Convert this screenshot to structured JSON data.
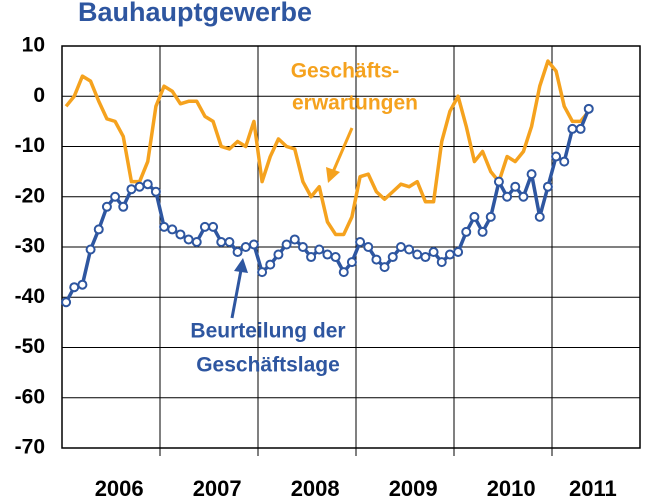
{
  "chart_data": {
    "type": "line",
    "title": "Bauhauptgewerbe",
    "categories": [
      null,
      null,
      null,
      null,
      null,
      null,
      "2006",
      null,
      null,
      null,
      null,
      null,
      null,
      null,
      null,
      null,
      null,
      null,
      "2007",
      null,
      null,
      null,
      null,
      null,
      null,
      null,
      null,
      null,
      null,
      null,
      "2008",
      null,
      null,
      null,
      null,
      null,
      null,
      null,
      null,
      null,
      null,
      null,
      "2009",
      null,
      null,
      null,
      null,
      null,
      null,
      null,
      null,
      null,
      null,
      null,
      "2010",
      null,
      null,
      null,
      null,
      null,
      null,
      null,
      null,
      null,
      "2011"
    ],
    "series": [
      {
        "name": "Geschäfts- erwartungen",
        "color": "#f5a21e",
        "values": [
          -2,
          0,
          4,
          3,
          -1,
          -4.5,
          -5,
          -8,
          -17,
          -17,
          -13,
          -2,
          2,
          1,
          -1.5,
          -1,
          -1,
          -4,
          -5,
          -10,
          -10.5,
          -9,
          -10,
          -5,
          -17,
          -12,
          -8.5,
          -10,
          -10.5,
          -17,
          -20,
          -18,
          -25,
          -27.5,
          -27.5,
          -24,
          -16,
          -15.5,
          -19,
          -20.5,
          -19,
          -17.5,
          -18,
          -17,
          -21,
          -21,
          -9,
          -3,
          0,
          -6,
          -13,
          -11,
          -15,
          -17,
          -12,
          -13,
          -11,
          -6,
          2,
          7,
          5,
          -2,
          -5,
          -5,
          -3
        ]
      },
      {
        "name": "Beurteilung der Geschäftslage",
        "color": "#2e56a0",
        "markers": true,
        "values": [
          -41,
          -38,
          -37.5,
          -30.5,
          -26.5,
          -22,
          -20,
          -22,
          -18.5,
          -18,
          -17.5,
          -19,
          -26,
          -26.5,
          -27.5,
          -28.5,
          -29,
          -26,
          -26,
          -29,
          -29,
          -31,
          -30,
          -29.5,
          -35,
          -33.5,
          -31.5,
          -29.5,
          -28.5,
          -30,
          -32,
          -30.5,
          -31.5,
          -32,
          -35,
          -33,
          -29,
          -30,
          -32.5,
          -34,
          -32,
          -30,
          -30.5,
          -31.5,
          -32,
          -31,
          -33,
          -31.5,
          -31,
          -27,
          -24,
          -27,
          -24,
          -17,
          -20,
          -18,
          -20,
          -15.5,
          -24,
          -18,
          -12,
          -13,
          -6.5,
          -6.5,
          -2.5
        ]
      }
    ],
    "annotations": [
      "Geschäfts-",
      "erwartungen",
      "Beurteilung der",
      "Geschäftslage"
    ],
    "ylim": [
      -70,
      10
    ],
    "yticks": [
      10,
      0,
      -10,
      -20,
      -30,
      -40,
      -50,
      -60,
      -70
    ],
    "grid": true
  }
}
